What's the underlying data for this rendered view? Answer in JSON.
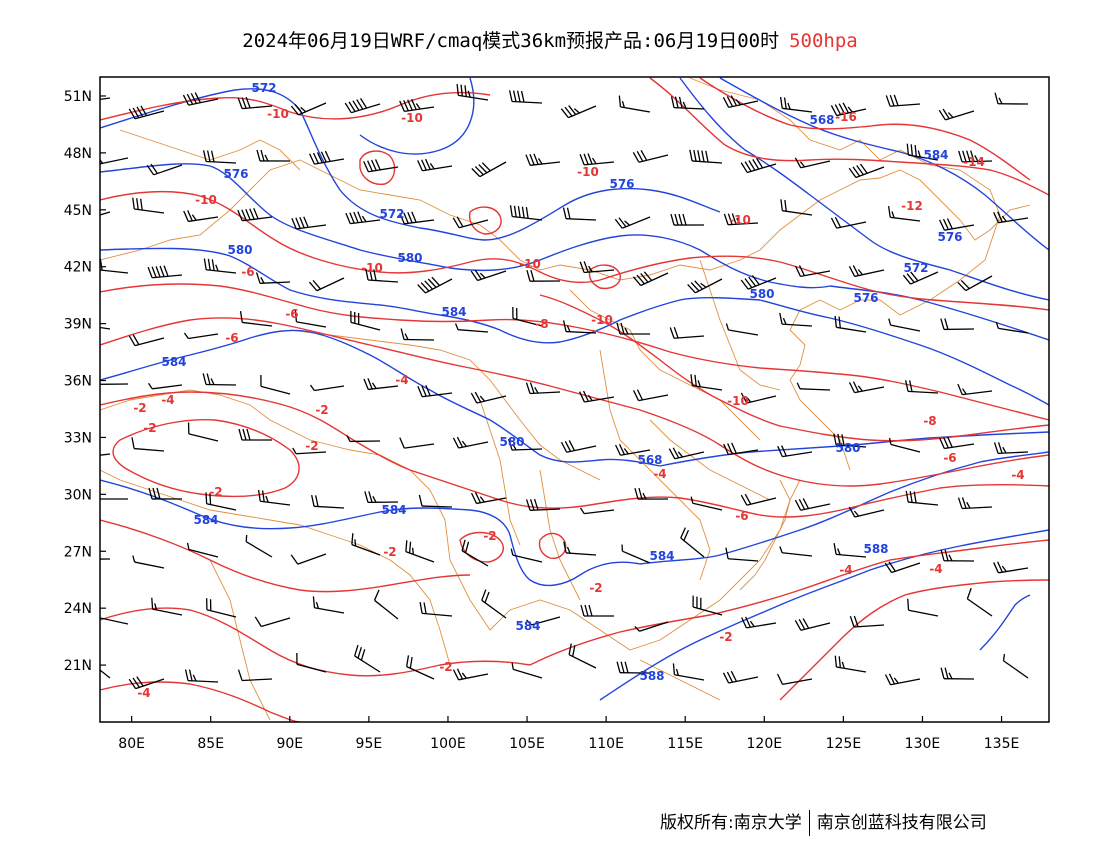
{
  "title": {
    "main": "2024年06月19日WRF/cmaq模式36km预报产品:06月19日00时",
    "level": "500hpa"
  },
  "footer": {
    "left": "版权所有:南京大学",
    "right": "南京创蓝科技有限公司"
  },
  "map": {
    "lon_range": [
      78,
      138
    ],
    "lat_range": [
      18,
      52
    ],
    "lon_ticks": [
      "80E",
      "85E",
      "90E",
      "95E",
      "100E",
      "105E",
      "110E",
      "115E",
      "120E",
      "125E",
      "130E",
      "135E"
    ],
    "lat_ticks": [
      "51N",
      "48N",
      "45N",
      "42N",
      "39N",
      "36N",
      "33N",
      "30N",
      "27N",
      "24N",
      "21N"
    ],
    "colors": {
      "height_contour": "#2244dd",
      "temperature_contour": "#e53535",
      "boundaries": "#e09040",
      "wind_barbs": "#000000"
    },
    "height_labels": [
      "572",
      "576",
      "572",
      "576",
      "580",
      "580",
      "584",
      "584",
      "580",
      "584",
      "576",
      "580",
      "572",
      "576",
      "568",
      "580",
      "584",
      "584",
      "584",
      "588",
      "588",
      "584",
      "568",
      "572",
      "584"
    ],
    "temperature_labels": [
      "-10",
      "-10",
      "-10",
      "-10",
      "-10",
      "-6",
      "-6",
      "-8",
      "-10",
      "-6",
      "-4",
      "-2",
      "-4",
      "-2",
      "-2",
      "-2",
      "-2",
      "-2",
      "-2",
      "-2",
      "-2",
      "-4",
      "-10",
      "-10",
      "-10",
      "-12",
      "-14",
      "-16",
      "-8",
      "-6",
      "-6",
      "-4",
      "-4",
      "-4",
      "-4",
      "-2",
      "-2",
      "-2"
    ]
  }
}
